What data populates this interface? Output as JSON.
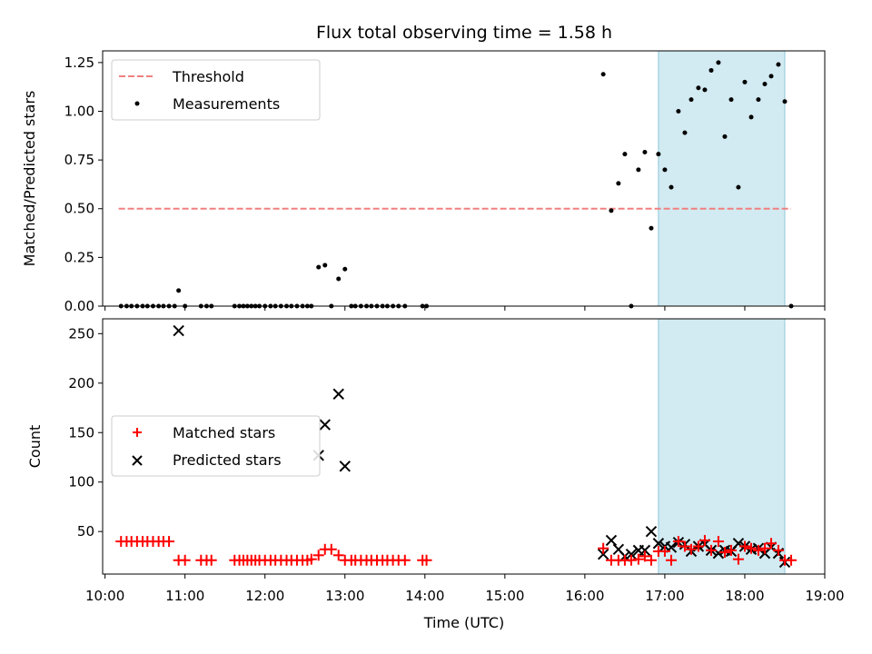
{
  "chart_data": {
    "title": "Flux total observing time = 1.58 h",
    "xlabel": "Time (UTC)",
    "x_ticks": [
      "10:00",
      "11:00",
      "12:00",
      "13:00",
      "14:00",
      "15:00",
      "16:00",
      "17:00",
      "18:00",
      "19:00"
    ],
    "x_tick_values": [
      10,
      11,
      12,
      13,
      14,
      15,
      16,
      17,
      18,
      19
    ],
    "xlim": [
      9.97,
      19.0
    ],
    "highlight_span": [
      16.92,
      18.5
    ],
    "colors": {
      "threshold": "#f08080",
      "measurement": "#000000",
      "matched": "#ff0000",
      "predicted": "#000000",
      "span": "#add8e6"
    },
    "panels": [
      {
        "type": "scatter",
        "ylabel": "Matched/Predicted stars",
        "ylim": [
          0,
          1.31
        ],
        "y_ticks": [
          "0.00",
          "0.25",
          "0.50",
          "0.75",
          "1.00",
          "1.25"
        ],
        "y_tick_values": [
          0,
          0.25,
          0.5,
          0.75,
          1.0,
          1.25
        ],
        "legend_position": "top-left",
        "legend": [
          "Threshold",
          "Measurements"
        ],
        "threshold": {
          "name": "Threshold",
          "x": [
            10.17,
            18.58
          ],
          "y": 0.5
        },
        "measurements": {
          "name": "Measurements",
          "x": [
            10.2,
            10.27,
            10.33,
            10.4,
            10.47,
            10.53,
            10.6,
            10.67,
            10.73,
            10.8,
            10.87,
            10.92,
            11.0,
            11.2,
            11.27,
            11.33,
            11.62,
            11.68,
            11.73,
            11.78,
            11.83,
            11.88,
            11.93,
            12.0,
            12.07,
            12.13,
            12.2,
            12.27,
            12.33,
            12.4,
            12.47,
            12.53,
            12.58,
            12.67,
            12.75,
            12.83,
            12.92,
            13.0,
            13.08,
            13.13,
            13.2,
            13.27,
            13.33,
            13.4,
            13.47,
            13.53,
            13.6,
            13.67,
            13.75,
            13.97,
            14.02,
            16.23,
            16.33,
            16.42,
            16.5,
            16.58,
            16.67,
            16.75,
            16.83,
            16.92,
            17.0,
            17.08,
            17.17,
            17.25,
            17.33,
            17.42,
            17.5,
            17.58,
            17.67,
            17.75,
            17.83,
            17.92,
            18.0,
            18.08,
            18.17,
            18.25,
            18.33,
            18.42,
            18.5,
            18.58
          ],
          "y": [
            0,
            0,
            0,
            0,
            0,
            0,
            0,
            0,
            0,
            0,
            0,
            0.08,
            0,
            0,
            0,
            0,
            0,
            0,
            0,
            0,
            0,
            0,
            0,
            0,
            0,
            0,
            0,
            0,
            0,
            0,
            0,
            0,
            0,
            0.2,
            0.21,
            0,
            0.14,
            0.19,
            0,
            0,
            0,
            0,
            0,
            0,
            0,
            0,
            0,
            0,
            0,
            0,
            0,
            1.19,
            0.49,
            0.63,
            0.78,
            0,
            0.7,
            0.79,
            0.4,
            0.78,
            0.7,
            0.61,
            1.0,
            0.89,
            1.06,
            1.12,
            1.11,
            1.21,
            1.25,
            0.87,
            1.06,
            0.61,
            1.15,
            0.97,
            1.06,
            1.14,
            1.18,
            1.24,
            1.05,
            0
          ]
        }
      },
      {
        "type": "scatter",
        "ylabel": "Count",
        "ylim": [
          7,
          265
        ],
        "y_ticks": [
          "50",
          "100",
          "150",
          "200",
          "250"
        ],
        "y_tick_values": [
          50,
          100,
          150,
          200,
          250
        ],
        "legend_position": "center-left",
        "legend": [
          "Matched stars",
          "Predicted stars"
        ],
        "matched": {
          "name": "Matched stars",
          "x": [
            10.2,
            10.27,
            10.33,
            10.4,
            10.47,
            10.53,
            10.6,
            10.67,
            10.73,
            10.8,
            10.92,
            11.0,
            11.2,
            11.27,
            11.33,
            11.62,
            11.68,
            11.73,
            11.78,
            11.83,
            11.88,
            11.93,
            12.0,
            12.07,
            12.13,
            12.2,
            12.27,
            12.33,
            12.4,
            12.47,
            12.53,
            12.58,
            12.67,
            12.75,
            12.83,
            12.92,
            13.0,
            13.08,
            13.13,
            13.2,
            13.27,
            13.33,
            13.4,
            13.47,
            13.53,
            13.6,
            13.67,
            13.75,
            13.97,
            14.02,
            16.23,
            16.33,
            16.42,
            16.5,
            16.58,
            16.67,
            16.75,
            16.83,
            16.92,
            17.0,
            17.08,
            17.17,
            17.25,
            17.33,
            17.42,
            17.5,
            17.58,
            17.67,
            17.75,
            17.83,
            17.92,
            18.0,
            18.08,
            18.17,
            18.25,
            18.33,
            18.42,
            18.5,
            18.58
          ],
          "y": [
            40,
            40,
            40,
            40,
            40,
            40,
            40,
            40,
            40,
            40,
            21,
            21,
            21,
            21,
            21,
            21,
            21,
            21,
            21,
            21,
            21,
            21,
            21,
            21,
            21,
            21,
            21,
            21,
            21,
            21,
            21,
            22,
            26,
            32,
            32,
            26,
            21,
            21,
            21,
            21,
            21,
            21,
            21,
            21,
            21,
            21,
            21,
            21,
            21,
            21,
            33,
            21,
            21,
            21,
            21,
            22,
            25,
            21,
            30,
            30,
            21,
            40,
            35,
            32,
            35,
            41,
            31,
            40,
            29,
            31,
            22,
            35,
            33,
            31,
            33,
            38,
            31,
            21,
            21
          ]
        },
        "predicted": {
          "name": "Predicted stars",
          "x": [
            10.92,
            12.67,
            12.75,
            12.92,
            13.0,
            16.23,
            16.33,
            16.42,
            16.5,
            16.58,
            16.67,
            16.75,
            16.83,
            16.92,
            17.0,
            17.08,
            17.17,
            17.25,
            17.33,
            17.42,
            17.5,
            17.58,
            17.67,
            17.75,
            17.83,
            17.92,
            18.0,
            18.08,
            18.17,
            18.25,
            18.33,
            18.42,
            18.5
          ],
          "y": [
            253,
            127,
            158,
            189,
            116,
            27,
            41,
            32,
            25,
            27,
            31,
            31,
            50,
            38,
            35,
            34,
            39,
            37,
            30,
            35,
            37,
            31,
            28,
            31,
            30,
            38,
            35,
            32,
            33,
            28,
            34,
            28,
            19
          ]
        }
      }
    ]
  }
}
